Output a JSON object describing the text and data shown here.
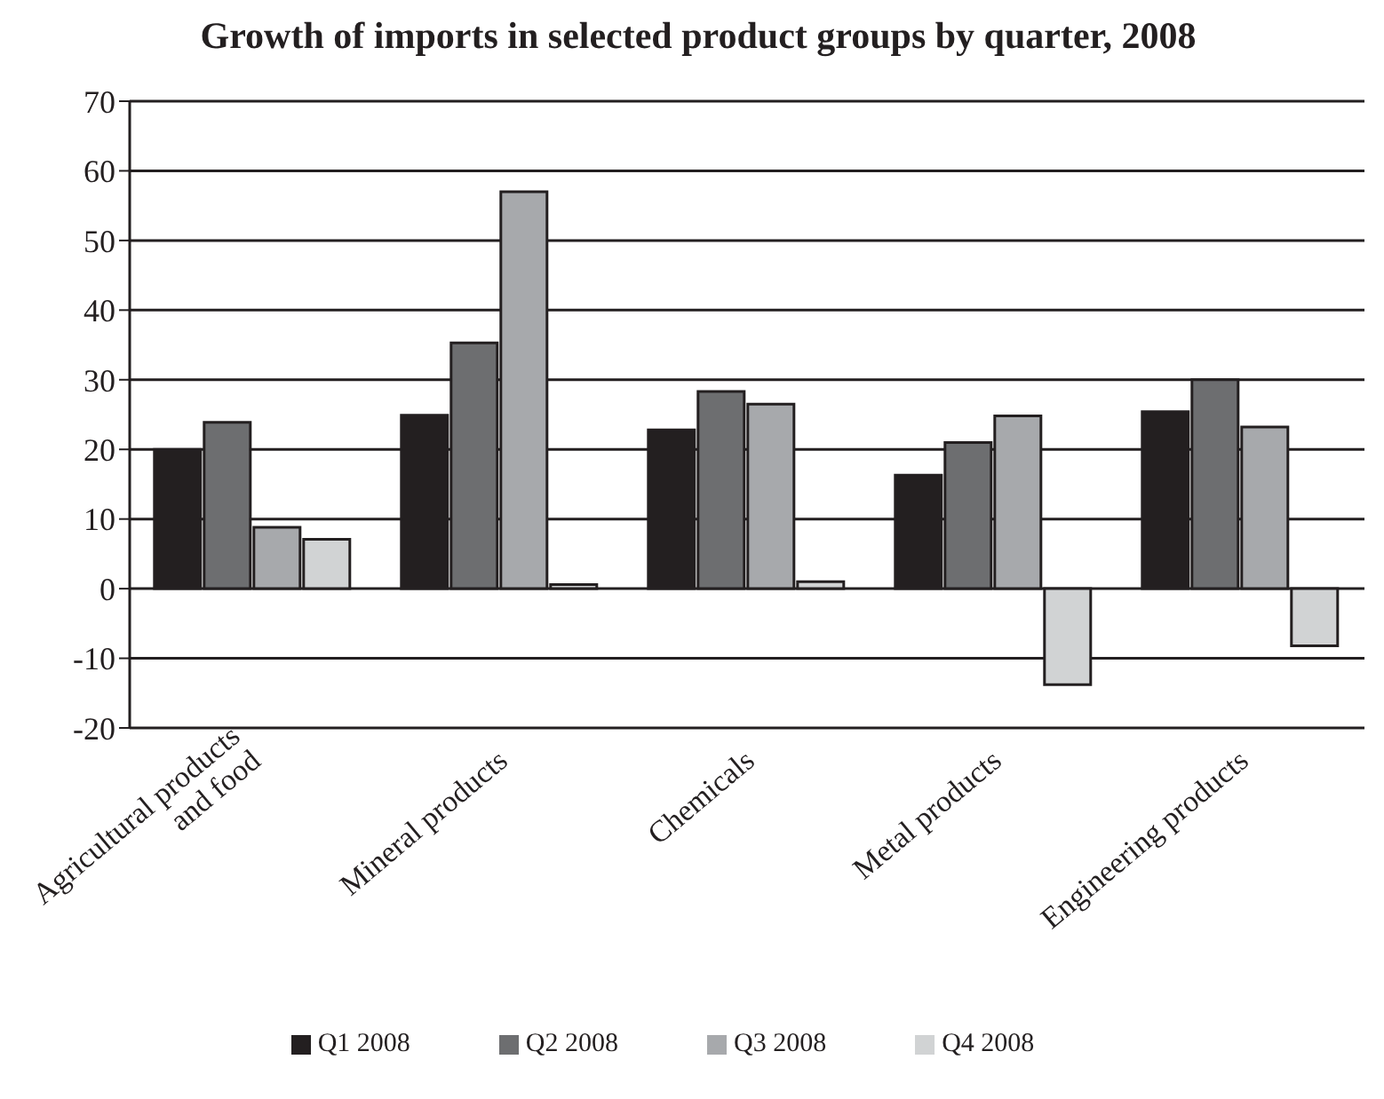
{
  "chart_data": {
    "type": "bar",
    "title": "Growth of imports in selected product groups by quarter, 2008",
    "categories": [
      "Agricultural products and food",
      "Mineral products",
      "Chemicals",
      "Metal products",
      "Engineering products"
    ],
    "series": [
      {
        "name": "Q1 2008",
        "color": "#231f20",
        "values": [
          20,
          24.9,
          22.8,
          16.3,
          25.4
        ]
      },
      {
        "name": "Q2 2008",
        "color": "#6d6e70",
        "values": [
          23.9,
          35.3,
          28.3,
          21,
          30
        ]
      },
      {
        "name": "Q3 2008",
        "color": "#a7a9ac",
        "values": [
          8.8,
          57,
          26.5,
          24.8,
          23.2
        ]
      },
      {
        "name": "Q4 2008",
        "color": "#d1d3d4",
        "values": [
          7.1,
          0.6,
          1,
          -13.8,
          -8.2
        ]
      }
    ],
    "ylim": [
      -20,
      70
    ],
    "yticks": [
      -20,
      -10,
      0,
      10,
      20,
      30,
      40,
      50,
      60,
      70
    ],
    "grid": "y",
    "legend": "bottom"
  }
}
